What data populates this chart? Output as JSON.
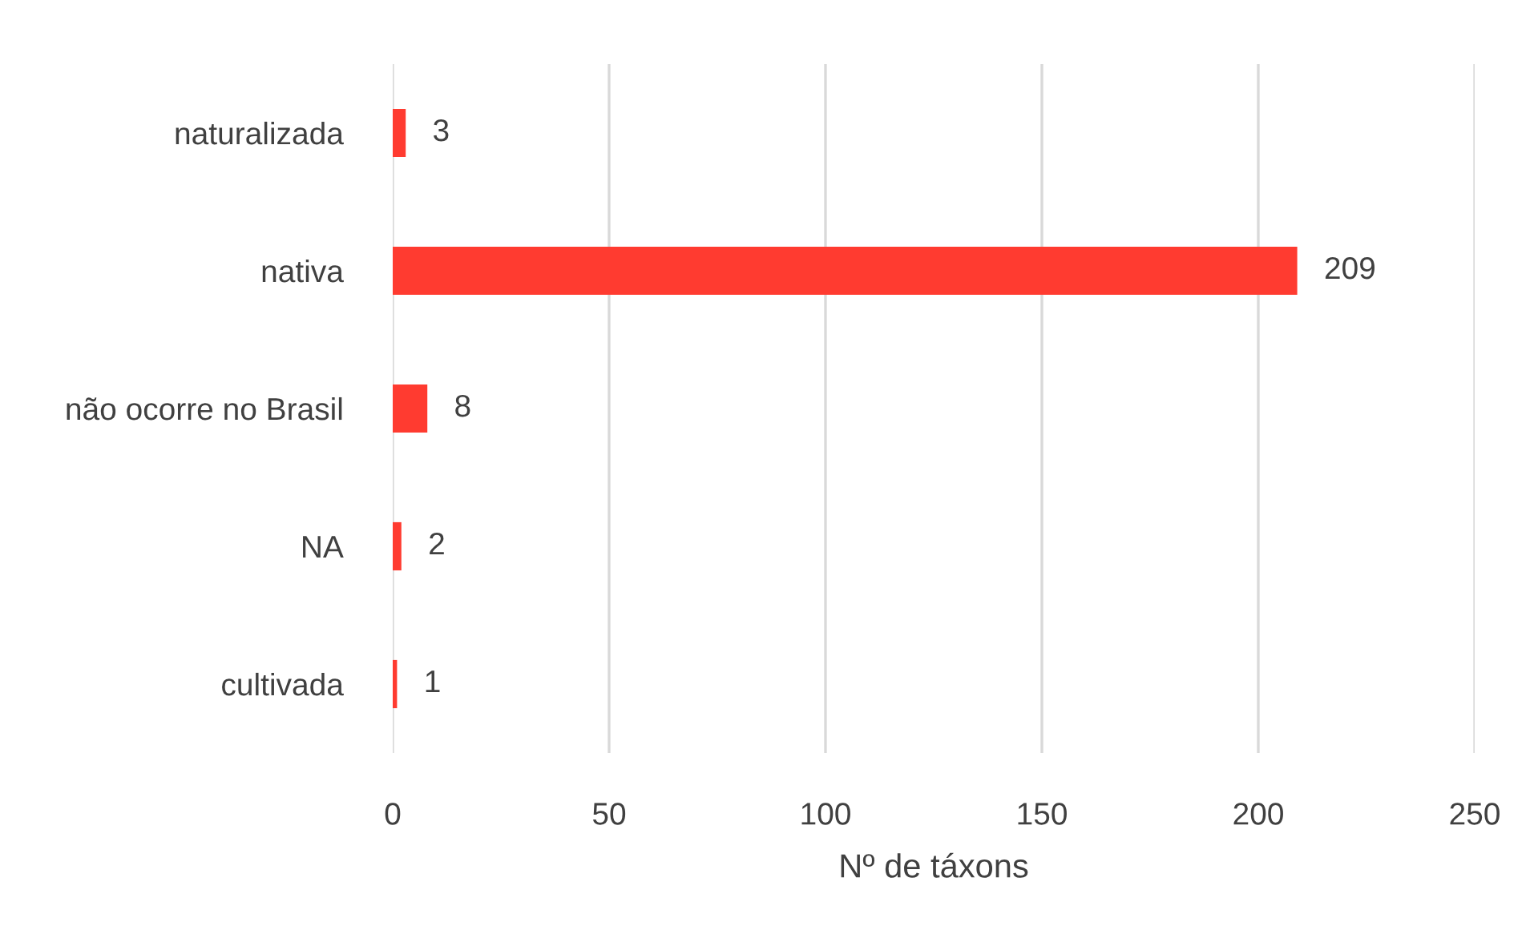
{
  "chart_data": {
    "type": "bar",
    "orientation": "horizontal",
    "xlabel": "Nº de táxons",
    "categories": [
      "naturalizada",
      "nativa",
      "não ocorre no Brasil",
      "NA",
      "cultivada"
    ],
    "values": [
      3,
      209,
      8,
      2,
      1
    ],
    "color": "#ff3b30",
    "xlim": [
      0,
      250
    ],
    "xticks": [
      0,
      50,
      100,
      150,
      200,
      250
    ],
    "grid": "x",
    "data_labels": true
  }
}
